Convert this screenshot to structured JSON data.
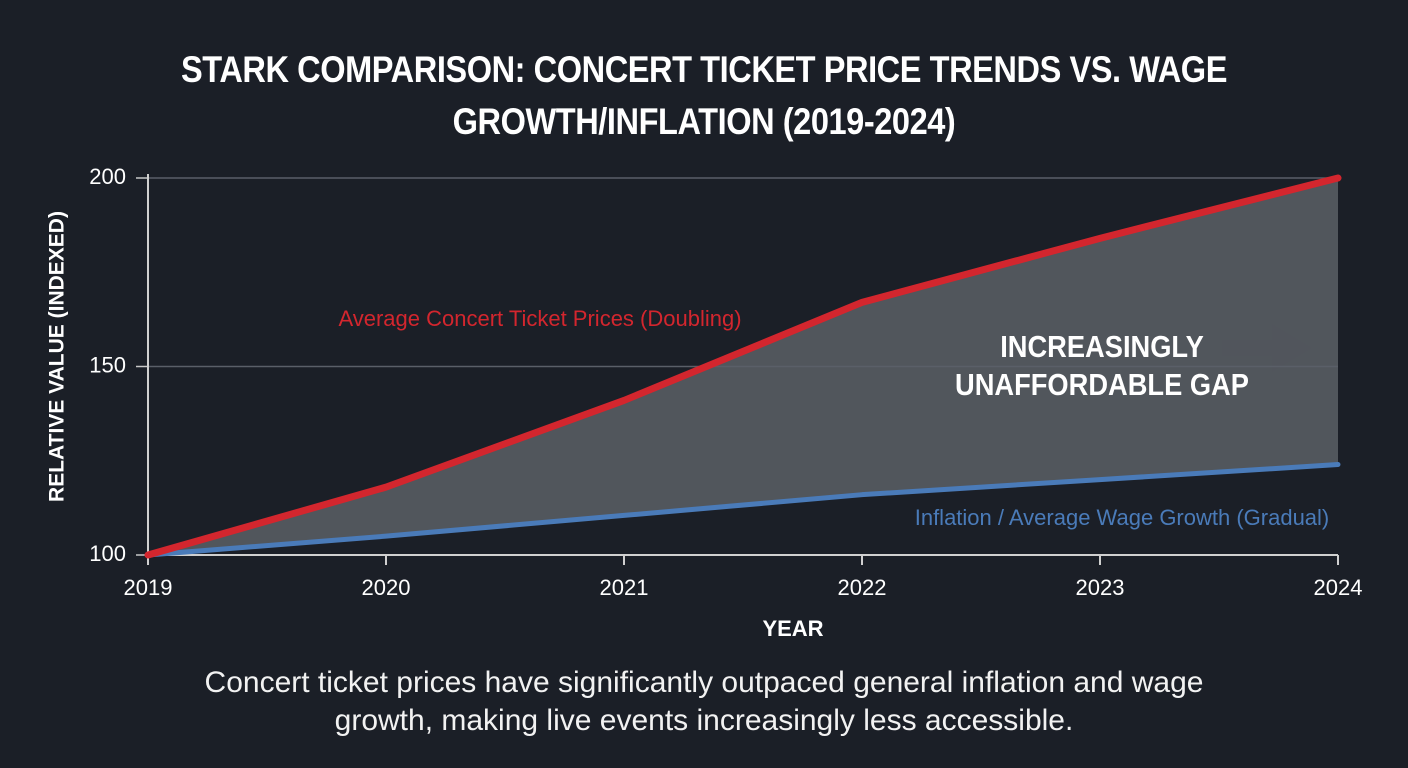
{
  "chart_data": {
    "type": "line",
    "title": "STARK COMPARISON: CONCERT TICKET PRICE TRENDS VS. WAGE GROWTH/INFLATION (2019-2024)",
    "x": [
      2019,
      2020,
      2021,
      2022,
      2023,
      2024
    ],
    "series": [
      {
        "name": "Average Concert Ticket Prices (Doubling)",
        "color": "#d3262e",
        "values": [
          100,
          118,
          141,
          167,
          184,
          200
        ]
      },
      {
        "name": "Inflation / Average Wage Growth (Gradual)",
        "color": "#4a7bb9",
        "values": [
          100,
          105,
          110.5,
          116,
          120,
          124
        ]
      }
    ],
    "xlim": [
      2019,
      2024
    ],
    "xticks": [
      2019,
      2020,
      2021,
      2022,
      2023,
      2024
    ],
    "ylim": [
      100,
      200
    ],
    "yticks": [
      100,
      150,
      200
    ],
    "xlabel": "YEAR",
    "ylabel": "RELATIVE VALUE (INDEXED)",
    "gap_label": [
      "INCREASINGLY",
      "UNAFFORDABLE GAP"
    ],
    "grid": true,
    "gap_color": "#585c63",
    "caption": "Concert ticket prices have significantly outpaced general inflation and wage growth, making live events increasingly less accessible."
  }
}
